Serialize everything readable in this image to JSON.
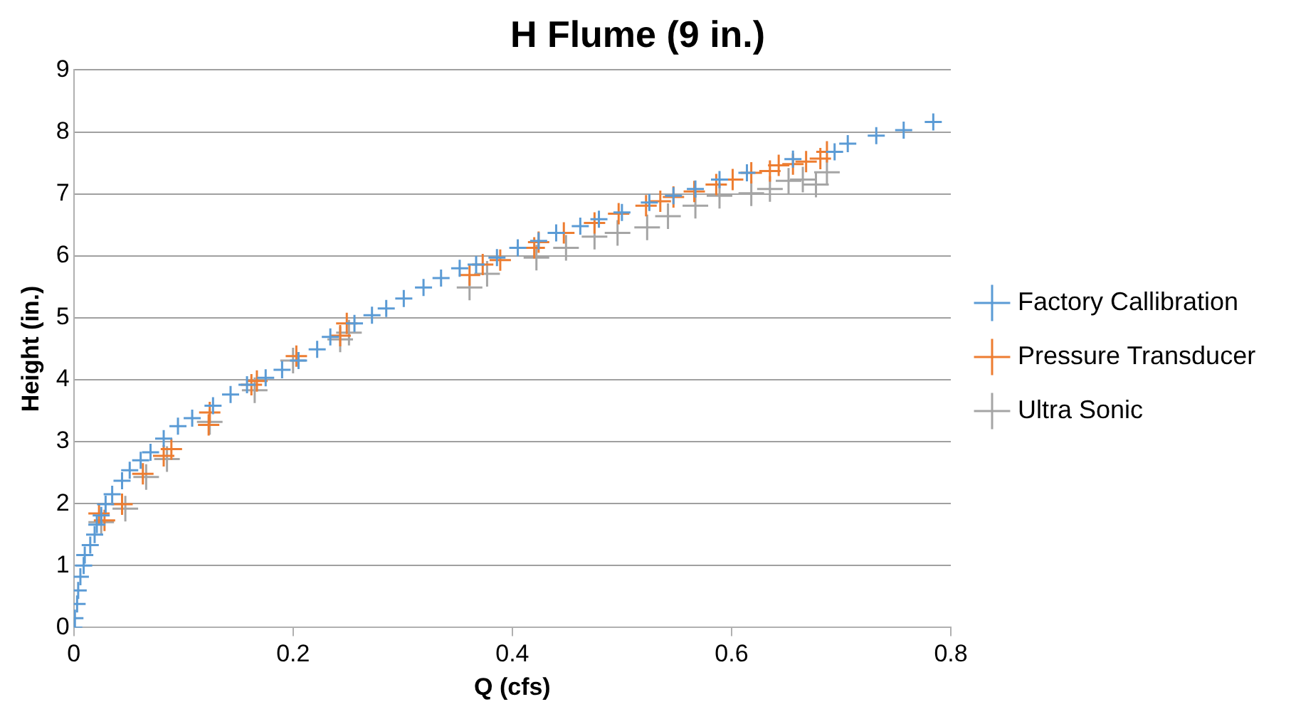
{
  "chart_data": {
    "type": "scatter",
    "title": "H Flume (9 in.)",
    "xlabel": "Q (cfs)",
    "ylabel": "Height (in.)",
    "xlim": [
      0,
      0.8
    ],
    "xticks": [
      0,
      0.2,
      0.4,
      0.6,
      0.8
    ],
    "ylim": [
      0,
      9
    ],
    "yticks": [
      0,
      1,
      2,
      3,
      4,
      5,
      6,
      7,
      8,
      9
    ],
    "grid": "y",
    "legend": "right",
    "marker": "cross",
    "series": [
      {
        "name": "Factory Callibration",
        "color": "#5b9bd5",
        "x": [
          0,
          0.001,
          0.003,
          0.004,
          0.006,
          0.009,
          0.01,
          0.015,
          0.019,
          0.021,
          0.025,
          0.029,
          0.035,
          0.044,
          0.051,
          0.061,
          0.07,
          0.082,
          0.095,
          0.108,
          0.127,
          0.143,
          0.158,
          0.175,
          0.19,
          0.205,
          0.222,
          0.234,
          0.256,
          0.272,
          0.285,
          0.301,
          0.319,
          0.335,
          0.352,
          0.367,
          0.386,
          0.405,
          0.424,
          0.44,
          0.462,
          0.479,
          0.5,
          0.525,
          0.547,
          0.567,
          0.589,
          0.614,
          0.656,
          0.694,
          0.706,
          0.732,
          0.757,
          0.784
        ],
        "values": [
          0,
          0.15,
          0.38,
          0.6,
          0.82,
          1.0,
          1.17,
          1.33,
          1.5,
          1.66,
          1.81,
          1.99,
          2.15,
          2.37,
          2.54,
          2.7,
          2.83,
          3.05,
          3.25,
          3.38,
          3.58,
          3.76,
          3.92,
          4.03,
          4.16,
          4.31,
          4.49,
          4.69,
          4.91,
          5.04,
          5.15,
          5.31,
          5.49,
          5.64,
          5.8,
          5.86,
          5.97,
          6.13,
          6.24,
          6.37,
          6.48,
          6.59,
          6.7,
          6.86,
          6.97,
          7.08,
          7.23,
          7.34,
          7.56,
          7.68,
          7.81,
          7.94,
          8.03,
          8.16
        ]
      },
      {
        "name": "Pressure Transducer",
        "color": "#ed7d31",
        "x": [
          0.023,
          0.028,
          0.044,
          0.063,
          0.082,
          0.089,
          0.123,
          0.124,
          0.162,
          0.167,
          0.203,
          0.243,
          0.249,
          0.361,
          0.373,
          0.389,
          0.42,
          0.424,
          0.447,
          0.475,
          0.497,
          0.522,
          0.535,
          0.547,
          0.566,
          0.586,
          0.601,
          0.618,
          0.635,
          0.643,
          0.656,
          0.668,
          0.681,
          0.687
        ],
        "values": [
          1.84,
          1.73,
          1.99,
          2.48,
          2.77,
          2.88,
          3.27,
          3.47,
          3.92,
          3.98,
          4.38,
          4.71,
          4.91,
          5.69,
          5.86,
          5.93,
          6.13,
          6.22,
          6.37,
          6.53,
          6.68,
          6.81,
          6.88,
          6.95,
          7.04,
          7.15,
          7.23,
          7.34,
          7.37,
          7.46,
          7.48,
          7.52,
          7.57,
          7.68
        ]
      },
      {
        "name": "Ultra Sonic",
        "color": "#a5a5a5",
        "x": [
          0.025,
          0.047,
          0.066,
          0.085,
          0.124,
          0.165,
          0.2,
          0.243,
          0.251,
          0.361,
          0.377,
          0.422,
          0.449,
          0.475,
          0.496,
          0.523,
          0.542,
          0.567,
          0.589,
          0.618,
          0.635,
          0.652,
          0.665,
          0.677,
          0.687
        ],
        "values": [
          1.7,
          1.92,
          2.43,
          2.72,
          3.32,
          3.83,
          4.31,
          4.65,
          4.76,
          5.49,
          5.71,
          5.97,
          6.13,
          6.31,
          6.37,
          6.46,
          6.64,
          6.81,
          6.97,
          7.01,
          7.08,
          7.21,
          7.23,
          7.15,
          7.35
        ]
      }
    ]
  }
}
